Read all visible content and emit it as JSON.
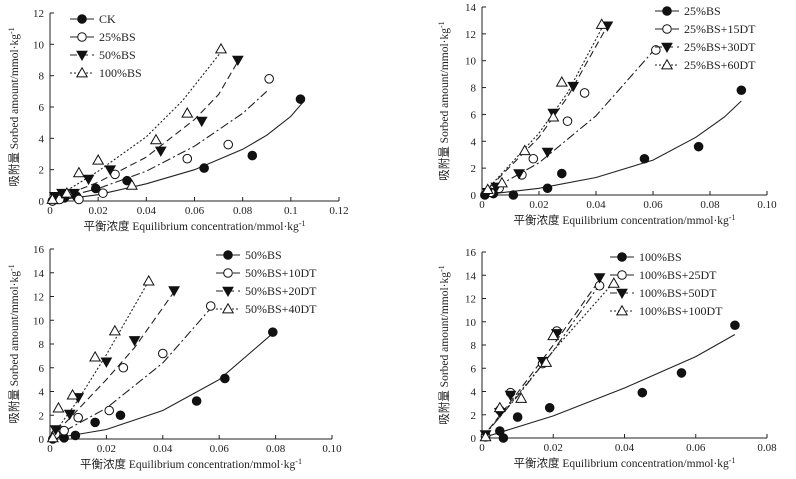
{
  "chart_data": [
    {
      "type": "scatter",
      "xlabel": "平衡浓度 Equilibrium concentration/mmol·kg⁻¹",
      "ylabel": "吸附量 Sorbed amount/mmol·kg⁻¹",
      "xlim": [
        0,
        0.12
      ],
      "ylim": [
        0,
        12
      ],
      "xticks": [
        "0",
        "0.02",
        "0.04",
        "0.06",
        "0.08",
        "0.1",
        "0.12"
      ],
      "yticks": [
        "0",
        "2",
        "4",
        "6",
        "8",
        "10",
        "12"
      ],
      "legend_position": "top-left",
      "series": [
        {
          "name": "CK",
          "marker": "filled-circle",
          "line": "solid",
          "points": [
            [
              0.001,
              0.0
            ],
            [
              0.003,
              0.1
            ],
            [
              0.006,
              0.2
            ],
            [
              0.011,
              0.3
            ],
            [
              0.019,
              0.8
            ],
            [
              0.032,
              1.3
            ],
            [
              0.064,
              2.1
            ],
            [
              0.084,
              2.9
            ],
            [
              0.104,
              6.5
            ]
          ],
          "fit": [
            [
              0,
              0
            ],
            [
              0.02,
              0.4
            ],
            [
              0.04,
              1.1
            ],
            [
              0.06,
              2.0
            ],
            [
              0.08,
              3.3
            ],
            [
              0.09,
              4.2
            ],
            [
              0.1,
              5.4
            ],
            [
              0.105,
              6.3
            ]
          ]
        },
        {
          "name": "25%BS",
          "marker": "open-circle",
          "line": "dash-dot",
          "points": [
            [
              0.001,
              0.0
            ],
            [
              0.004,
              0.1
            ],
            [
              0.012,
              0.1
            ],
            [
              0.022,
              0.5
            ],
            [
              0.027,
              1.7
            ],
            [
              0.057,
              2.7
            ],
            [
              0.074,
              3.6
            ],
            [
              0.091,
              7.8
            ]
          ],
          "fit": [
            [
              0,
              0
            ],
            [
              0.02,
              0.8
            ],
            [
              0.04,
              1.9
            ],
            [
              0.06,
              3.5
            ],
            [
              0.08,
              5.6
            ],
            [
              0.09,
              7.0
            ]
          ]
        },
        {
          "name": "50%BS",
          "marker": "filled-triangle-down",
          "line": "dashed",
          "points": [
            [
              0.002,
              0.3
            ],
            [
              0.005,
              0.5
            ],
            [
              0.01,
              0.5
            ],
            [
              0.016,
              1.4
            ],
            [
              0.025,
              2.0
            ],
            [
              0.046,
              3.2
            ],
            [
              0.063,
              5.1
            ],
            [
              0.078,
              9.0
            ]
          ],
          "fit": [
            [
              0,
              0
            ],
            [
              0.02,
              1.2
            ],
            [
              0.04,
              2.8
            ],
            [
              0.06,
              5.2
            ],
            [
              0.07,
              6.8
            ],
            [
              0.078,
              8.9
            ]
          ]
        },
        {
          "name": "100%BS",
          "marker": "open-triangle-up",
          "line": "dotted",
          "points": [
            [
              0.001,
              0.1
            ],
            [
              0.007,
              0.5
            ],
            [
              0.012,
              1.8
            ],
            [
              0.02,
              2.6
            ],
            [
              0.034,
              1.0
            ],
            [
              0.044,
              3.9
            ],
            [
              0.057,
              5.6
            ],
            [
              0.071,
              9.7
            ]
          ],
          "fit": [
            [
              0,
              0
            ],
            [
              0.02,
              1.9
            ],
            [
              0.04,
              4.1
            ],
            [
              0.055,
              6.4
            ],
            [
              0.072,
              9.7
            ]
          ]
        }
      ]
    },
    {
      "type": "scatter",
      "xlabel": "平衡浓度 Equilibrium concentration/mmol·kg⁻¹",
      "ylabel": "吸附量 Sorbed amount/mmol·kg⁻¹",
      "xlim": [
        0,
        0.1
      ],
      "ylim": [
        0,
        14
      ],
      "xticks": [
        "0",
        "0.02",
        "0.04",
        "0.06",
        "0.08",
        "0.10"
      ],
      "yticks": [
        "0",
        "2",
        "4",
        "6",
        "8",
        "10",
        "12",
        "14"
      ],
      "legend_position": "top-right",
      "series": [
        {
          "name": "25%BS",
          "marker": "filled-circle",
          "line": "solid",
          "points": [
            [
              0.001,
              0.0
            ],
            [
              0.004,
              0.1
            ],
            [
              0.011,
              0.0
            ],
            [
              0.023,
              0.5
            ],
            [
              0.028,
              1.6
            ],
            [
              0.057,
              2.7
            ],
            [
              0.076,
              3.6
            ],
            [
              0.091,
              7.8
            ]
          ],
          "fit": [
            [
              0,
              0
            ],
            [
              0.02,
              0.5
            ],
            [
              0.04,
              1.3
            ],
            [
              0.06,
              2.6
            ],
            [
              0.075,
              4.3
            ],
            [
              0.085,
              5.8
            ],
            [
              0.091,
              7.0
            ]
          ]
        },
        {
          "name": "25%BS+15DT",
          "marker": "open-circle",
          "line": "dash-dot",
          "points": [
            [
              0.003,
              0.2
            ],
            [
              0.006,
              0.5
            ],
            [
              0.014,
              1.5
            ],
            [
              0.018,
              2.7
            ],
            [
              0.03,
              5.5
            ],
            [
              0.036,
              7.6
            ],
            [
              0.061,
              10.8
            ]
          ],
          "fit": [
            [
              0,
              0
            ],
            [
              0.02,
              2.4
            ],
            [
              0.04,
              5.9
            ],
            [
              0.06,
              10.7
            ]
          ]
        },
        {
          "name": "25%BS+30DT",
          "marker": "filled-triangle-down",
          "line": "dashed",
          "points": [
            [
              0.002,
              0.2
            ],
            [
              0.005,
              0.6
            ],
            [
              0.013,
              1.6
            ],
            [
              0.023,
              3.2
            ],
            [
              0.025,
              6.1
            ],
            [
              0.032,
              8.1
            ],
            [
              0.044,
              12.6
            ]
          ],
          "fit": [
            [
              0,
              0
            ],
            [
              0.02,
              4.3
            ],
            [
              0.03,
              7.3
            ],
            [
              0.044,
              12.6
            ]
          ]
        },
        {
          "name": "25%BS+60DT",
          "marker": "open-triangle-up",
          "line": "dotted",
          "points": [
            [
              0.002,
              0.4
            ],
            [
              0.007,
              0.9
            ],
            [
              0.015,
              3.3
            ],
            [
              0.025,
              5.8
            ],
            [
              0.028,
              8.4
            ],
            [
              0.042,
              12.7
            ]
          ],
          "fit": [
            [
              0,
              0
            ],
            [
              0.02,
              4.6
            ],
            [
              0.03,
              7.6
            ],
            [
              0.043,
              12.8
            ]
          ]
        }
      ]
    },
    {
      "type": "scatter",
      "xlabel": "平衡浓度 Equilibrium concentration/mmol·kg⁻¹",
      "ylabel": "吸附量 Sorbed amount/mmol·kg⁻¹",
      "xlim": [
        0,
        0.1
      ],
      "ylim": [
        0,
        16
      ],
      "xticks": [
        "0",
        "0.02",
        "0.04",
        "0.06",
        "0.08",
        "0.10"
      ],
      "yticks": [
        "0",
        "2",
        "4",
        "6",
        "8",
        "10",
        "12",
        "14",
        "16"
      ],
      "legend_position": "top-right",
      "series": [
        {
          "name": "50%BS",
          "marker": "filled-circle",
          "line": "solid",
          "points": [
            [
              0.001,
              0.0
            ],
            [
              0.005,
              0.1
            ],
            [
              0.009,
              0.3
            ],
            [
              0.016,
              1.4
            ],
            [
              0.025,
              2.0
            ],
            [
              0.052,
              3.2
            ],
            [
              0.062,
              5.1
            ],
            [
              0.079,
              9.0
            ]
          ],
          "fit": [
            [
              0,
              0
            ],
            [
              0.02,
              0.8
            ],
            [
              0.04,
              2.4
            ],
            [
              0.06,
              5.0
            ],
            [
              0.079,
              8.9
            ]
          ]
        },
        {
          "name": "50%BS+10DT",
          "marker": "open-circle",
          "line": "dash-dot",
          "points": [
            [
              0.002,
              0.4
            ],
            [
              0.005,
              0.7
            ],
            [
              0.01,
              1.8
            ],
            [
              0.021,
              2.4
            ],
            [
              0.026,
              6.0
            ],
            [
              0.04,
              7.2
            ],
            [
              0.057,
              11.2
            ]
          ],
          "fit": [
            [
              0,
              0
            ],
            [
              0.02,
              2.6
            ],
            [
              0.04,
              6.4
            ],
            [
              0.057,
              11.0
            ]
          ]
        },
        {
          "name": "50%BS+20DT",
          "marker": "filled-triangle-down",
          "line": "dashed",
          "points": [
            [
              0.002,
              0.8
            ],
            [
              0.007,
              2.1
            ],
            [
              0.01,
              3.5
            ],
            [
              0.02,
              6.5
            ],
            [
              0.03,
              8.3
            ],
            [
              0.044,
              12.5
            ]
          ],
          "fit": [
            [
              0,
              0
            ],
            [
              0.02,
              5.0
            ],
            [
              0.03,
              7.7
            ],
            [
              0.044,
              12.4
            ]
          ]
        },
        {
          "name": "50%BS+40DT",
          "marker": "open-triangle-up",
          "line": "dotted",
          "points": [
            [
              0.001,
              0.1
            ],
            [
              0.003,
              2.6
            ],
            [
              0.008,
              3.7
            ],
            [
              0.016,
              6.9
            ],
            [
              0.023,
              9.1
            ],
            [
              0.035,
              13.3
            ]
          ],
          "fit": [
            [
              0,
              0
            ],
            [
              0.01,
              3.3
            ],
            [
              0.02,
              7.1
            ],
            [
              0.035,
              13.3
            ]
          ]
        }
      ]
    },
    {
      "type": "scatter",
      "xlabel": "平衡浓度 Equilibrium concentration/mmol·kg⁻¹",
      "ylabel": "吸附量 Sorbed amount/mmol·kg⁻¹",
      "xlim": [
        0,
        0.08
      ],
      "ylim": [
        0,
        16
      ],
      "xticks": [
        "0",
        "0.02",
        "0.04",
        "0.06",
        "0.08"
      ],
      "yticks": [
        "0",
        "2",
        "4",
        "6",
        "8",
        "10",
        "12",
        "14",
        "16"
      ],
      "legend_position": "top-left",
      "series": [
        {
          "name": "100%BS",
          "marker": "filled-circle",
          "line": "solid",
          "points": [
            [
              0.001,
              0.1
            ],
            [
              0.005,
              0.6
            ],
            [
              0.006,
              0.0
            ],
            [
              0.01,
              1.8
            ],
            [
              0.019,
              2.6
            ],
            [
              0.045,
              3.9
            ],
            [
              0.056,
              5.6
            ],
            [
              0.071,
              9.7
            ]
          ],
          "fit": [
            [
              0,
              0
            ],
            [
              0.02,
              1.9
            ],
            [
              0.04,
              4.3
            ],
            [
              0.06,
              7.0
            ],
            [
              0.071,
              8.9
            ]
          ]
        },
        {
          "name": "100%BS+25DT",
          "marker": "open-circle",
          "line": "dash-dot",
          "points": [
            [
              0.001,
              0.2
            ],
            [
              0.005,
              2.4
            ],
            [
              0.008,
              3.9
            ],
            [
              0.017,
              6.4
            ],
            [
              0.021,
              9.2
            ],
            [
              0.033,
              13.1
            ]
          ],
          "fit": [
            [
              0,
              0
            ],
            [
              0.01,
              3.6
            ],
            [
              0.02,
              7.5
            ],
            [
              0.033,
              13.2
            ]
          ]
        },
        {
          "name": "100%BS+50DT",
          "marker": "filled-triangle-down",
          "line": "dashed",
          "points": [
            [
              0.001,
              0.3
            ],
            [
              0.005,
              2.2
            ],
            [
              0.008,
              3.7
            ],
            [
              0.017,
              6.6
            ],
            [
              0.021,
              9.0
            ],
            [
              0.033,
              13.8
            ]
          ],
          "fit": [
            [
              0,
              0
            ],
            [
              0.01,
              3.9
            ],
            [
              0.02,
              8.0
            ],
            [
              0.033,
              13.6
            ]
          ]
        },
        {
          "name": "100%BS+100DT",
          "marker": "open-triangle-up",
          "line": "dotted",
          "points": [
            [
              0.001,
              0.1
            ],
            [
              0.005,
              2.6
            ],
            [
              0.011,
              3.4
            ],
            [
              0.018,
              6.5
            ],
            [
              0.02,
              8.8
            ],
            [
              0.037,
              13.3
            ]
          ],
          "fit": [
            [
              0,
              0
            ],
            [
              0.01,
              3.7
            ],
            [
              0.02,
              7.5
            ],
            [
              0.037,
              13.4
            ]
          ]
        }
      ]
    }
  ]
}
